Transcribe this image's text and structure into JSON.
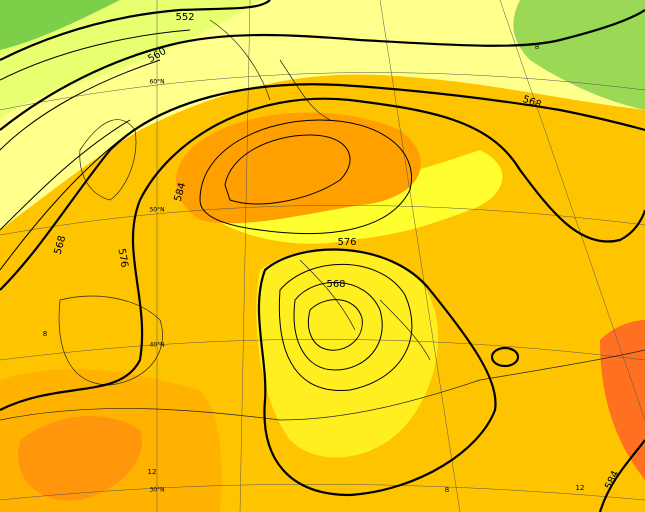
{
  "contour_labels": [
    "552",
    "560",
    "568",
    "576",
    "584",
    "568",
    "576",
    "568",
    "584"
  ],
  "latitude_labels": [
    "60°N",
    "50°N",
    "40°N",
    "30°N"
  ],
  "small_labels": [
    "8",
    "8",
    "12",
    "8",
    "12"
  ]
}
